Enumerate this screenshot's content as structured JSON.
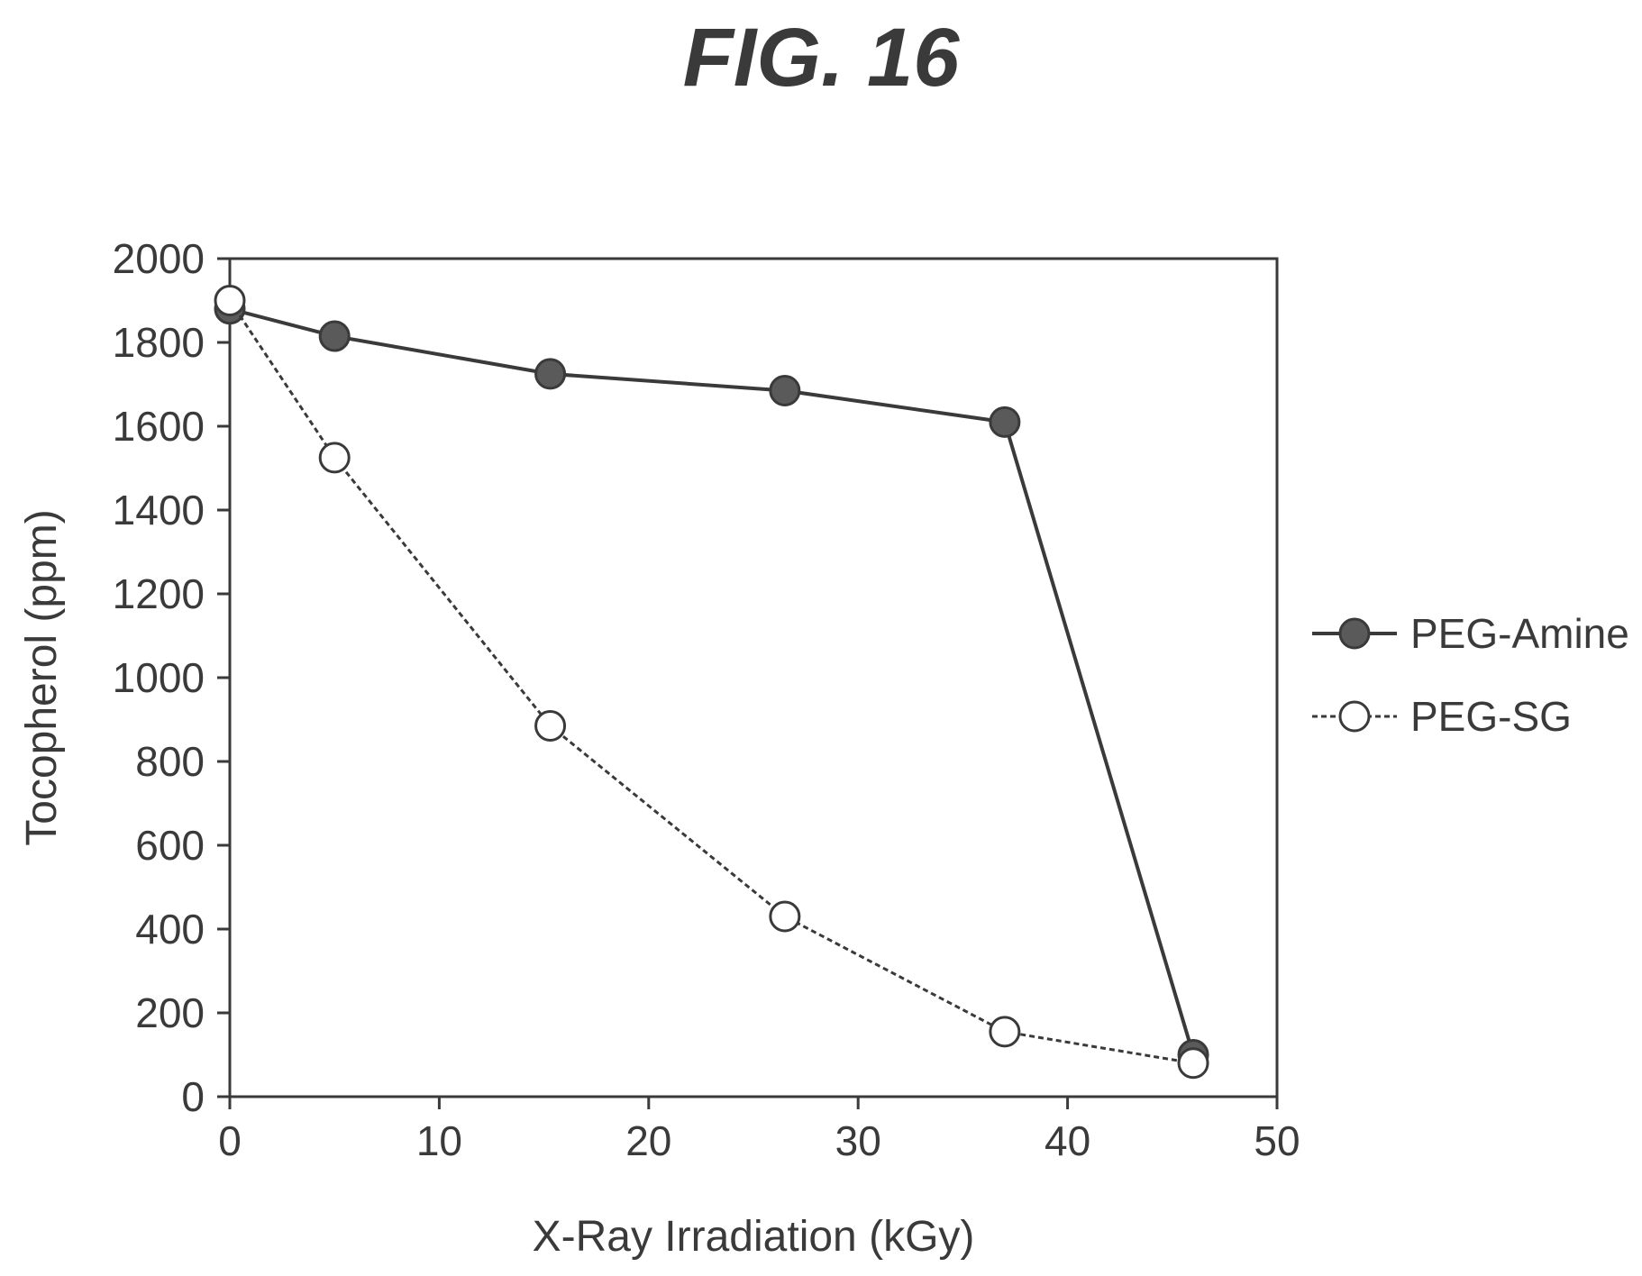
{
  "figure": {
    "title": "FIG. 16"
  },
  "chart_data": {
    "type": "line",
    "xlabel": "X-Ray Irradiation (kGy)",
    "ylabel": "Tocopherol (ppm)",
    "xlim": [
      0,
      50
    ],
    "ylim": [
      0,
      2000
    ],
    "xticks": [
      0,
      10,
      20,
      30,
      40,
      50
    ],
    "yticks": [
      0,
      200,
      400,
      600,
      800,
      1000,
      1200,
      1400,
      1600,
      1800,
      2000
    ],
    "grid": false,
    "legend_position": "right",
    "series": [
      {
        "name": "PEG-Amine",
        "marker": "filled-circle",
        "line_style": "solid",
        "color": "#3a3a3a",
        "x": [
          0,
          5,
          15.3,
          26.5,
          37,
          46
        ],
        "y": [
          1880,
          1815,
          1725,
          1685,
          1610,
          100
        ]
      },
      {
        "name": "PEG-SG",
        "marker": "open-circle",
        "line_style": "dashed",
        "color": "#3a3a3a",
        "x": [
          0,
          5,
          15.3,
          26.5,
          37,
          46
        ],
        "y": [
          1900,
          1525,
          885,
          430,
          155,
          80
        ]
      }
    ]
  }
}
